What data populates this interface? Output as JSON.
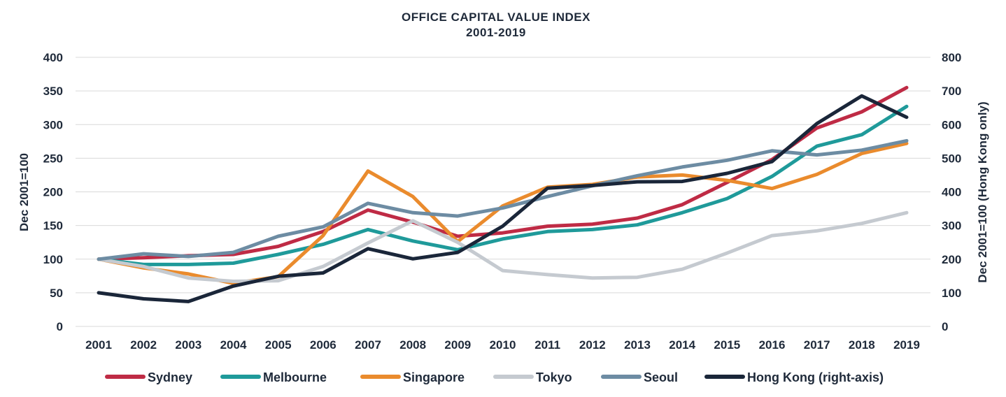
{
  "chart_data": {
    "type": "line",
    "title": "OFFICE CAPITAL VALUE INDEX",
    "subtitle": "2001-2019",
    "ylabel": "Dec 2001=100",
    "y2label": "Dec 2001=100 (Hong Kong only)",
    "ylim": [
      0,
      400
    ],
    "y2lim": [
      0,
      800
    ],
    "yticks": [
      0,
      50,
      100,
      150,
      200,
      250,
      300,
      350,
      400
    ],
    "y2ticks": [
      0,
      100,
      200,
      300,
      400,
      500,
      600,
      700,
      800
    ],
    "grid": true,
    "legend_position": "bottom",
    "x": [
      "2001",
      "2002",
      "2003",
      "2004",
      "2005",
      "2006",
      "2007",
      "2008",
      "2009",
      "2010",
      "2011",
      "2012",
      "2013",
      "2014",
      "2015",
      "2016",
      "2017",
      "2018",
      "2019"
    ],
    "series": [
      {
        "name": "Sydney",
        "axis": "left",
        "color": "#bf2b45",
        "values": [
          100,
          102,
          105,
          107,
          119,
          141,
          173,
          155,
          134,
          139,
          149,
          152,
          161,
          181,
          214,
          248,
          295,
          319,
          355
        ]
      },
      {
        "name": "Melbourne",
        "axis": "left",
        "color": "#1f9a9a",
        "values": [
          100,
          92,
          92,
          94,
          107,
          122,
          144,
          127,
          114,
          130,
          141,
          144,
          151,
          169,
          190,
          223,
          268,
          285,
          327
        ]
      },
      {
        "name": "Singapore",
        "axis": "left",
        "color": "#ea8b2d",
        "values": [
          100,
          87,
          78,
          64,
          74,
          135,
          231,
          193,
          126,
          179,
          207,
          211,
          222,
          225,
          217,
          205,
          226,
          257,
          272
        ]
      },
      {
        "name": "Tokyo",
        "axis": "left",
        "color": "#c5cad0",
        "values": [
          100,
          89,
          72,
          67,
          68,
          89,
          124,
          157,
          125,
          83,
          77,
          72,
          73,
          85,
          109,
          135,
          142,
          153,
          169
        ]
      },
      {
        "name": "Seoul",
        "axis": "left",
        "color": "#6d8ca3",
        "values": [
          100,
          108,
          104,
          110,
          134,
          148,
          183,
          169,
          164,
          176,
          193,
          209,
          224,
          237,
          247,
          261,
          255,
          262,
          276
        ]
      },
      {
        "name": "Hong Kong (right-axis)",
        "axis": "right",
        "color": "#1a2639",
        "values": [
          100,
          82,
          74,
          120,
          149,
          159,
          231,
          201,
          220,
          298,
          411,
          419,
          430,
          431,
          455,
          490,
          603,
          685,
          622
        ]
      }
    ]
  }
}
